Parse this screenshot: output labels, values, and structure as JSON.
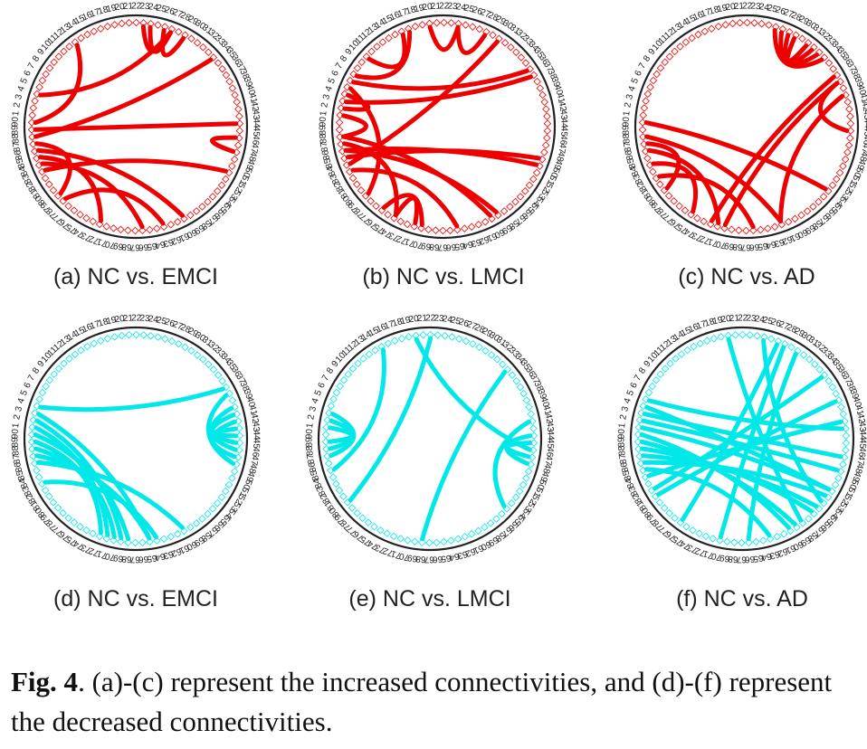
{
  "panels": [
    {
      "id": "a",
      "label": "(a) NC vs. EMCI",
      "color": "#ee0000",
      "links": [
        [
          90,
          13
        ],
        [
          88,
          34
        ],
        [
          87,
          79
        ],
        [
          86,
          60
        ],
        [
          85,
          72
        ],
        [
          84,
          66
        ],
        [
          83,
          51
        ],
        [
          89,
          44
        ],
        [
          4,
          27
        ],
        [
          78,
          63
        ],
        [
          48,
          46
        ],
        [
          23,
          27
        ],
        [
          26,
          29
        ],
        [
          24,
          27
        ]
      ]
    },
    {
      "id": "b",
      "label": "(b) NC vs. LMCI",
      "color": "#ee0000",
      "links": [
        [
          88,
          60
        ],
        [
          87,
          74
        ],
        [
          86,
          59
        ],
        [
          84,
          30
        ],
        [
          83,
          65
        ],
        [
          2,
          4
        ],
        [
          1,
          88
        ],
        [
          3,
          37
        ],
        [
          5,
          79
        ],
        [
          6,
          36
        ],
        [
          7,
          17
        ],
        [
          10,
          16
        ],
        [
          20,
          24
        ],
        [
          70,
          76
        ],
        [
          71,
          74
        ],
        [
          49,
          85
        ],
        [
          24,
          28
        ],
        [
          86,
          50
        ]
      ]
    },
    {
      "id": "c",
      "label": "(c) NC vs. AD",
      "color": "#ee0000",
      "links": [
        [
          90,
          54
        ],
        [
          88,
          62
        ],
        [
          87,
          80
        ],
        [
          86,
          71
        ],
        [
          84,
          75
        ],
        [
          82,
          66
        ],
        [
          70,
          38
        ],
        [
          72,
          37
        ],
        [
          45,
          38
        ],
        [
          62,
          40
        ],
        [
          26,
          34
        ],
        [
          28,
          32
        ],
        [
          27,
          33
        ],
        [
          29,
          31
        ]
      ]
    },
    {
      "id": "d",
      "label": "(d) NC vs. EMCI",
      "color": "#00e8e8",
      "links": [
        [
          89,
          72
        ],
        [
          88,
          70
        ],
        [
          87,
          65
        ],
        [
          86,
          60
        ],
        [
          90,
          68
        ],
        [
          1,
          71
        ],
        [
          2,
          69
        ],
        [
          3,
          65
        ],
        [
          4,
          37
        ],
        [
          83,
          64
        ],
        [
          47,
          42
        ],
        [
          46,
          40
        ],
        [
          45,
          41
        ],
        [
          48,
          38
        ],
        [
          44,
          43
        ]
      ]
    },
    {
      "id": "e",
      "label": "(e) NC vs. LMCI",
      "color": "#00e8e8",
      "links": [
        [
          85,
          15
        ],
        [
          80,
          22
        ],
        [
          68,
          34
        ],
        [
          55,
          42
        ],
        [
          46,
          20
        ],
        [
          47,
          45
        ],
        [
          48,
          44
        ],
        [
          88,
          2
        ],
        [
          89,
          1
        ],
        [
          87,
          3
        ]
      ]
    },
    {
      "id": "f",
      "label": "(f) NC vs. AD",
      "color": "#00e8e8",
      "links": [
        [
          90,
          60
        ],
        [
          89,
          59
        ],
        [
          88,
          56
        ],
        [
          87,
          55
        ],
        [
          86,
          53
        ],
        [
          85,
          63
        ],
        [
          1,
          52
        ],
        [
          2,
          49
        ],
        [
          3,
          47
        ],
        [
          84,
          42
        ],
        [
          82,
          35
        ],
        [
          66,
          30
        ],
        [
          58,
          20
        ],
        [
          54,
          25
        ],
        [
          5,
          43
        ],
        [
          70,
          28
        ],
        [
          76,
          27
        ],
        [
          81,
          39
        ],
        [
          4,
          52
        ]
      ]
    }
  ],
  "caption": {
    "lead": "Fig. 4",
    "text": ". (a)-(c) represent the increased connectivities, and (d)-(f) represent the decreased connectivities."
  }
}
